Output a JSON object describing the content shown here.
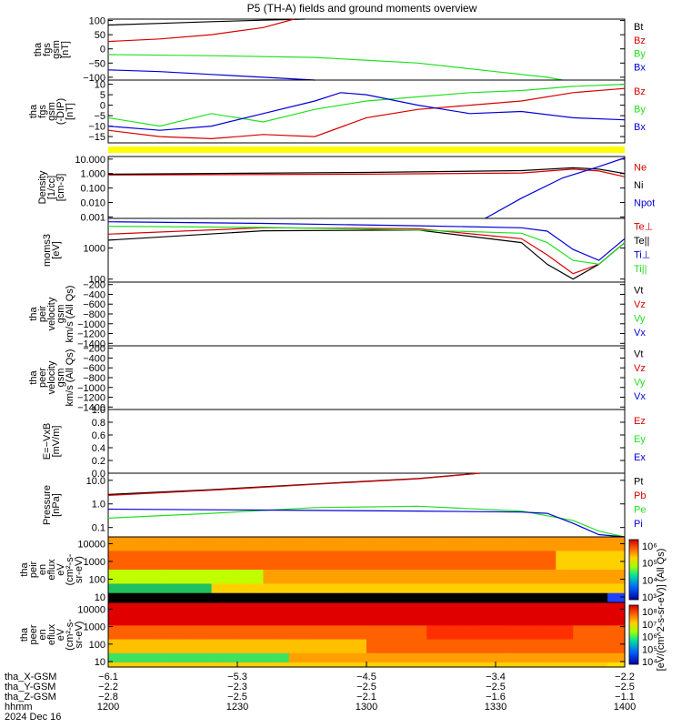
{
  "title": "P5 (TH-A) fields and ground moments overview",
  "colors": {
    "black": "#000000",
    "red": "#d80000",
    "green": "#22e022",
    "blue": "#0000d8",
    "flag": "#ffff00"
  },
  "chart_data": [
    {
      "type": "line",
      "ylabel": [
        "tha",
        "fgs",
        "gsm",
        "[nT]"
      ],
      "ylim": [
        -110,
        105
      ],
      "yticks": [
        "100",
        "50",
        "0",
        "−50",
        "−100"
      ],
      "ytick_values": [
        100,
        50,
        0,
        -50,
        -100
      ],
      "series": [
        {
          "name": "Bt",
          "color": "black",
          "values": [
            [
              0,
              84
            ],
            [
              0.1,
              90
            ],
            [
              0.2,
              96
            ],
            [
              0.3,
              101
            ],
            [
              0.38,
              105
            ]
          ]
        },
        {
          "name": "Bz",
          "color": "red",
          "values": [
            [
              0,
              26
            ],
            [
              0.1,
              35
            ],
            [
              0.2,
              50
            ],
            [
              0.3,
              75
            ],
            [
              0.36,
              105
            ]
          ]
        },
        {
          "name": "By",
          "color": "green",
          "values": [
            [
              0,
              -20
            ],
            [
              0.2,
              -24
            ],
            [
              0.4,
              -30
            ],
            [
              0.6,
              -50
            ],
            [
              0.75,
              -80
            ],
            [
              0.85,
              -100
            ],
            [
              0.88,
              -110
            ]
          ]
        },
        {
          "name": "Bx",
          "color": "blue",
          "values": [
            [
              0,
              -74
            ],
            [
              0.1,
              -80
            ],
            [
              0.2,
              -90
            ],
            [
              0.3,
              -100
            ],
            [
              0.4,
              -110
            ]
          ]
        }
      ]
    },
    {
      "type": "line",
      "ylabel": [
        "tha",
        "fgs",
        "gsm",
        "(-DIP)",
        "[nT]"
      ],
      "ylim": [
        -18,
        12
      ],
      "yticks": [
        "10",
        "5",
        "0",
        "−5",
        "−10",
        "−15"
      ],
      "ytick_values": [
        10,
        5,
        0,
        -5,
        -10,
        -15
      ],
      "series": [
        {
          "name": "Bz",
          "color": "red",
          "values": [
            [
              0,
              -12
            ],
            [
              0.1,
              -15
            ],
            [
              0.2,
              -16
            ],
            [
              0.3,
              -14
            ],
            [
              0.4,
              -15
            ],
            [
              0.5,
              -6
            ],
            [
              0.6,
              -2
            ],
            [
              0.7,
              0
            ],
            [
              0.8,
              2
            ],
            [
              0.9,
              6
            ],
            [
              1,
              8
            ]
          ]
        },
        {
          "name": "By",
          "color": "green",
          "values": [
            [
              0,
              -6
            ],
            [
              0.1,
              -10
            ],
            [
              0.2,
              -4
            ],
            [
              0.3,
              -8
            ],
            [
              0.4,
              -2
            ],
            [
              0.5,
              2
            ],
            [
              0.6,
              4
            ],
            [
              0.7,
              6
            ],
            [
              0.8,
              7
            ],
            [
              0.9,
              9
            ],
            [
              1,
              10
            ]
          ]
        },
        {
          "name": "Bx",
          "color": "blue",
          "values": [
            [
              0,
              -10
            ],
            [
              0.1,
              -12
            ],
            [
              0.2,
              -10
            ],
            [
              0.3,
              -4
            ],
            [
              0.4,
              2
            ],
            [
              0.45,
              6
            ],
            [
              0.5,
              5
            ],
            [
              0.6,
              0
            ],
            [
              0.7,
              -4
            ],
            [
              0.8,
              -3
            ],
            [
              0.9,
              -6
            ],
            [
              1,
              -7
            ]
          ]
        }
      ]
    },
    {
      "type": "line",
      "ylabel": [
        "Density",
        "[1/cc]",
        "[cm-3]"
      ],
      "yscale": "log",
      "ylim": [
        0.0008,
        15
      ],
      "yticks": [
        "10.000",
        "1.000",
        "0.100",
        "0.010",
        "0.001"
      ],
      "ytick_values": [
        10,
        1,
        0.1,
        0.01,
        0.001
      ],
      "series": [
        {
          "name": "Ne",
          "color": "red",
          "values": [
            [
              0,
              0.8
            ],
            [
              0.5,
              0.9
            ],
            [
              0.8,
              1.1
            ],
            [
              0.9,
              2
            ],
            [
              0.95,
              1.5
            ],
            [
              1,
              0.6
            ]
          ]
        },
        {
          "name": "Ni",
          "color": "black",
          "values": [
            [
              0,
              0.9
            ],
            [
              0.5,
              1.2
            ],
            [
              0.8,
              1.6
            ],
            [
              0.9,
              2.5
            ],
            [
              0.95,
              2
            ],
            [
              1,
              1
            ]
          ]
        },
        {
          "name": "Npot",
          "color": "blue",
          "values": [
            [
              0.73,
              0.0008
            ],
            [
              0.8,
              0.02
            ],
            [
              0.88,
              0.5
            ],
            [
              0.95,
              3
            ],
            [
              1,
              12
            ]
          ]
        }
      ]
    },
    {
      "type": "line",
      "ylabel": [
        "moms3",
        "[eV]"
      ],
      "yscale": "log",
      "ylim": [
        80,
        9000
      ],
      "yticks": [
        "1000",
        "100"
      ],
      "ytick_values": [
        1000,
        100
      ],
      "series": [
        {
          "name": "Te⊥",
          "color": "red",
          "values": [
            [
              0,
              2800
            ],
            [
              0.3,
              4500
            ],
            [
              0.6,
              4200
            ],
            [
              0.8,
              2000
            ],
            [
              0.85,
              600
            ],
            [
              0.9,
              150
            ],
            [
              0.95,
              300
            ],
            [
              1,
              1500
            ]
          ]
        },
        {
          "name": "Te||",
          "color": "black",
          "values": [
            [
              0,
              1800
            ],
            [
              0.3,
              3600
            ],
            [
              0.6,
              3800
            ],
            [
              0.8,
              1500
            ],
            [
              0.85,
              300
            ],
            [
              0.9,
              100
            ],
            [
              0.95,
              300
            ],
            [
              1,
              1500
            ]
          ]
        },
        {
          "name": "Ti⊥",
          "color": "blue",
          "values": [
            [
              0,
              7000
            ],
            [
              0.3,
              6200
            ],
            [
              0.6,
              5200
            ],
            [
              0.8,
              4500
            ],
            [
              0.85,
              3500
            ],
            [
              0.9,
              900
            ],
            [
              0.95,
              400
            ],
            [
              1,
              2000
            ]
          ]
        },
        {
          "name": "Ti||",
          "color": "green",
          "values": [
            [
              0,
              5000
            ],
            [
              0.3,
              4600
            ],
            [
              0.6,
              3800
            ],
            [
              0.8,
              3000
            ],
            [
              0.85,
              1500
            ],
            [
              0.9,
              400
            ],
            [
              0.95,
              300
            ],
            [
              1,
              1500
            ]
          ]
        }
      ]
    },
    {
      "type": "line",
      "ylabel": [
        "tha",
        "peir",
        "velocity",
        "gsm",
        "km/s (All Qs)"
      ],
      "ylim": [
        -1450,
        -150
      ],
      "yticks": [
        "−200",
        "−400",
        "−600",
        "−800",
        "−1000",
        "−1200",
        "−1400"
      ],
      "ytick_values": [
        -200,
        -400,
        -600,
        -800,
        -1000,
        -1200,
        -1400
      ],
      "legend": [
        {
          "name": "Vt",
          "color": "black"
        },
        {
          "name": "Vz",
          "color": "red"
        },
        {
          "name": "Vy",
          "color": "green"
        },
        {
          "name": "Vx",
          "color": "blue"
        }
      ],
      "series": []
    },
    {
      "type": "line",
      "ylabel": [
        "tha",
        "peer",
        "velocity",
        "gsm",
        "km/s (All Qs)"
      ],
      "ylim": [
        -1450,
        -150
      ],
      "yticks": [
        "−200",
        "−400",
        "−600",
        "−800",
        "−1000",
        "−1200",
        "−1400"
      ],
      "ytick_values": [
        -200,
        -400,
        -600,
        -800,
        -1000,
        -1200,
        -1400
      ],
      "legend": [
        {
          "name": "Vt",
          "color": "black"
        },
        {
          "name": "Vz",
          "color": "red"
        },
        {
          "name": "Vy",
          "color": "green"
        },
        {
          "name": "Vx",
          "color": "blue"
        }
      ],
      "series": []
    },
    {
      "type": "line",
      "ylabel": [
        "E=−VxB",
        "[mV/m]"
      ],
      "ylim": [
        0,
        1
      ],
      "yticks": [
        "1.0",
        "0.8",
        "0.6",
        "0.4",
        "0.2",
        "0.0"
      ],
      "ytick_values": [
        1,
        0.8,
        0.6,
        0.4,
        0.2,
        0
      ],
      "legend": [
        {
          "name": "Ez",
          "color": "red"
        },
        {
          "name": "Ey",
          "color": "green"
        },
        {
          "name": "Ex",
          "color": "blue"
        }
      ],
      "series": []
    },
    {
      "type": "line",
      "ylabel": [
        "Pressure",
        "[nPa]"
      ],
      "yscale": "log",
      "ylim": [
        0.04,
        20
      ],
      "yticks": [
        "10.0",
        "1.0",
        "0.1"
      ],
      "ytick_values": [
        10,
        1,
        0.1
      ],
      "series": [
        {
          "name": "Pt",
          "color": "black",
          "values": [
            [
              0,
              2.5
            ],
            [
              0.2,
              4
            ],
            [
              0.4,
              7
            ],
            [
              0.6,
              12
            ],
            [
              0.72,
              20
            ]
          ]
        },
        {
          "name": "Pb",
          "color": "red",
          "values": [
            [
              0,
              2.3
            ],
            [
              0.2,
              3.8
            ],
            [
              0.4,
              6.8
            ],
            [
              0.6,
              11.5
            ],
            [
              0.72,
              20
            ]
          ]
        },
        {
          "name": "Pe",
          "color": "green",
          "values": [
            [
              0,
              0.25
            ],
            [
              0.2,
              0.4
            ],
            [
              0.4,
              0.7
            ],
            [
              0.6,
              0.8
            ],
            [
              0.8,
              0.5
            ],
            [
              0.9,
              0.2
            ],
            [
              0.95,
              0.07
            ],
            [
              1,
              0.04
            ]
          ]
        },
        {
          "name": "Pi",
          "color": "blue",
          "values": [
            [
              0,
              0.6
            ],
            [
              0.3,
              0.55
            ],
            [
              0.6,
              0.5
            ],
            [
              0.8,
              0.45
            ],
            [
              0.85,
              0.4
            ],
            [
              0.9,
              0.15
            ],
            [
              0.95,
              0.05
            ],
            [
              1,
              0.04
            ]
          ]
        }
      ]
    },
    {
      "type": "heatmap",
      "ylabel": [
        "tha",
        "peir",
        "en",
        "eflux",
        "eV",
        "(cm²-s-",
        "sr-eV)"
      ],
      "yticks": [
        "10000",
        "1000",
        "100",
        "10"
      ],
      "ytick_values": [
        10000,
        1000,
        100,
        10
      ]
    },
    {
      "type": "heatmap",
      "ylabel": [
        "tha",
        "peer",
        "en",
        "eflux",
        "eV",
        "(cm²-s-",
        "sr-eV)"
      ],
      "yticks": [
        "10000",
        "1000",
        "100",
        "10"
      ],
      "ytick_values": [
        10000,
        1000,
        100,
        10
      ]
    }
  ],
  "colorbar": {
    "label": "[eV/(cm^2-s-sr-eV)] (All Qs)",
    "ticks_top": [
      "10⁶",
      "10⁵",
      "10⁴",
      "10³"
    ],
    "ticks_bottom": [
      "10⁸",
      "10⁷",
      "10⁶",
      "10⁵",
      "10⁴"
    ]
  },
  "xaxis": {
    "rows": [
      {
        "label": "tha_X-GSM",
        "values": [
          "−6.1",
          "−5.3",
          "−4.5",
          "−3.4",
          "−2.2"
        ]
      },
      {
        "label": "tha_Y-GSM",
        "values": [
          "−2.2",
          "−2.3",
          "−2.5",
          "−2.5",
          "−2.5"
        ]
      },
      {
        "label": "tha_Z-GSM",
        "values": [
          "−2.8",
          "−2.5",
          "−2.1",
          "−1.6",
          "−1.1"
        ]
      },
      {
        "label": "hhmm",
        "values": [
          "1200",
          "1230",
          "1300",
          "1330",
          "1400"
        ]
      }
    ],
    "date": "2024 Dec 16"
  }
}
